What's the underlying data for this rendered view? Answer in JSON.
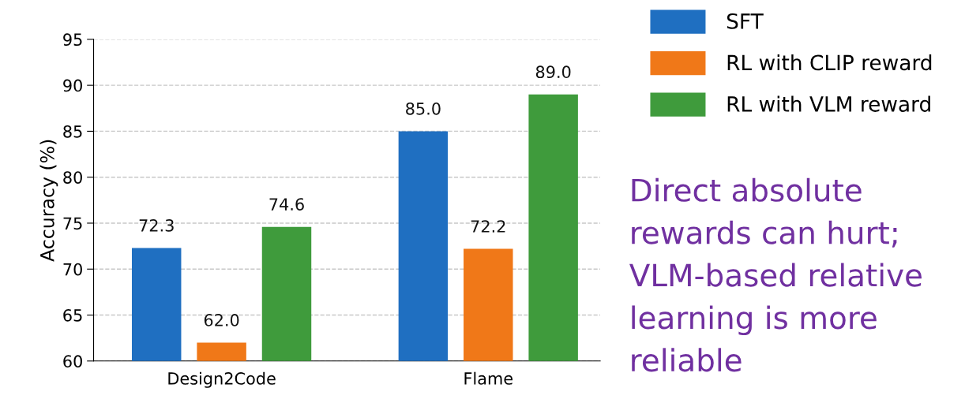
{
  "chart_data": {
    "type": "bar",
    "ylabel": "Accuracy (%)",
    "categories": [
      "Design2Code",
      "Flame"
    ],
    "series": [
      {
        "name": "SFT",
        "color": "#1f6fc1",
        "values": [
          72.3,
          85.0
        ],
        "value_labels": [
          "72.3",
          "85.0"
        ]
      },
      {
        "name": "RL with CLIP reward",
        "color": "#f07818",
        "values": [
          62.0,
          72.2
        ],
        "value_labels": [
          "62.0",
          "72.2"
        ]
      },
      {
        "name": "RL with VLM reward",
        "color": "#3f9b3c",
        "values": [
          74.6,
          89.0
        ],
        "value_labels": [
          "74.6",
          "89.0"
        ]
      }
    ],
    "ylim": [
      60,
      95
    ],
    "yticks": [
      60,
      65,
      70,
      75,
      80,
      85,
      90,
      95
    ],
    "grid": "y",
    "legend": "top right",
    "annotations": [
      "Direct absolute rewards can hurt; VLM-based relative learning is more reliable"
    ]
  }
}
